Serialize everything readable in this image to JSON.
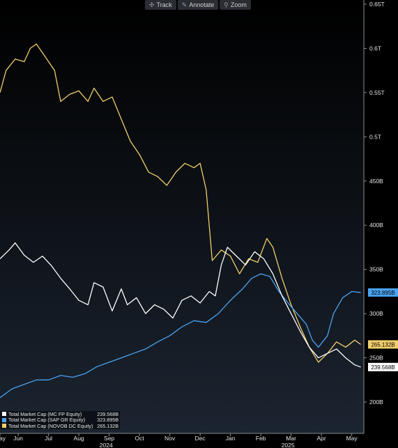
{
  "toolbar": {
    "track_label": "Track",
    "annotate_label": "Annotate",
    "zoom_label": "Zoom",
    "track_icon": "crosshair-icon",
    "annotate_icon": "pencil-icon",
    "zoom_icon": "magnifier-icon"
  },
  "legend": [
    {
      "label": "Total Market Cap (MC FP Equity)",
      "value": "239.568B",
      "color": "#ffffff"
    },
    {
      "label": "Total Market Cap (SAP GR Equity)",
      "value": "323.895B",
      "color": "#4aa3f0"
    },
    {
      "label": "Total Market Cap (NOVOB DC Equity)",
      "value": "265.132B",
      "color": "#f2cf6a"
    }
  ],
  "chart_data": {
    "type": "line",
    "y_unit": "USD market cap (billions)",
    "ylim": [
      170,
      650
    ],
    "y_ticks": [
      {
        "value": 650,
        "label": "0.65T"
      },
      {
        "value": 600,
        "label": "0.6T"
      },
      {
        "value": 550,
        "label": "0.55T"
      },
      {
        "value": 500,
        "label": "0.5T"
      },
      {
        "value": 450,
        "label": "450B"
      },
      {
        "value": 400,
        "label": "400B"
      },
      {
        "value": 350,
        "label": "350B"
      },
      {
        "value": 300,
        "label": "300B"
      },
      {
        "value": 250,
        "label": "250B"
      },
      {
        "value": 200,
        "label": "200B"
      }
    ],
    "x_ticks": [
      {
        "t": 0.0,
        "label": "May"
      },
      {
        "t": 0.6,
        "label": "Jun"
      },
      {
        "t": 1.6,
        "label": "Jul"
      },
      {
        "t": 2.6,
        "label": "Aug"
      },
      {
        "t": 3.6,
        "label": "Sep"
      },
      {
        "t": 4.6,
        "label": "Oct"
      },
      {
        "t": 5.6,
        "label": "Nov"
      },
      {
        "t": 6.6,
        "label": "Dec"
      },
      {
        "t": 7.6,
        "label": "Jan"
      },
      {
        "t": 8.6,
        "label": "Feb"
      },
      {
        "t": 9.6,
        "label": "Mar"
      },
      {
        "t": 10.6,
        "label": "Apr"
      },
      {
        "t": 11.6,
        "label": "May"
      }
    ],
    "year_labels": [
      {
        "t": 3.5,
        "label": "2024"
      },
      {
        "t": 9.5,
        "label": "2025"
      }
    ],
    "grid": false,
    "series": [
      {
        "name": "Total Market Cap (MC FP Equity)",
        "color": "#ffffff",
        "last_value": 239.568,
        "last_label": "239.568B",
        "points": [
          [
            0.0,
            362
          ],
          [
            0.3,
            372
          ],
          [
            0.5,
            380
          ],
          [
            0.8,
            366
          ],
          [
            1.1,
            358
          ],
          [
            1.4,
            365
          ],
          [
            1.7,
            354
          ],
          [
            2.0,
            340
          ],
          [
            2.3,
            328
          ],
          [
            2.6,
            315
          ],
          [
            2.9,
            310
          ],
          [
            3.1,
            335
          ],
          [
            3.4,
            330
          ],
          [
            3.7,
            303
          ],
          [
            4.0,
            328
          ],
          [
            4.2,
            310
          ],
          [
            4.5,
            318
          ],
          [
            4.8,
            300
          ],
          [
            5.1,
            310
          ],
          [
            5.4,
            305
          ],
          [
            5.7,
            295
          ],
          [
            6.0,
            315
          ],
          [
            6.3,
            320
          ],
          [
            6.6,
            312
          ],
          [
            6.9,
            325
          ],
          [
            7.1,
            320
          ],
          [
            7.3,
            355
          ],
          [
            7.5,
            375
          ],
          [
            7.8,
            365
          ],
          [
            8.1,
            355
          ],
          [
            8.4,
            370
          ],
          [
            8.7,
            362
          ],
          [
            9.0,
            345
          ],
          [
            9.3,
            320
          ],
          [
            9.6,
            300
          ],
          [
            9.9,
            280
          ],
          [
            10.2,
            262
          ],
          [
            10.5,
            250
          ],
          [
            10.8,
            255
          ],
          [
            11.1,
            260
          ],
          [
            11.4,
            250
          ],
          [
            11.7,
            242
          ],
          [
            11.9,
            239.568
          ]
        ]
      },
      {
        "name": "Total Market Cap (SAP GR Equity)",
        "color": "#4aa3f0",
        "last_value": 323.895,
        "last_label": "323.895B",
        "points": [
          [
            0.0,
            205
          ],
          [
            0.4,
            215
          ],
          [
            0.8,
            220
          ],
          [
            1.2,
            225
          ],
          [
            1.6,
            225
          ],
          [
            2.0,
            230
          ],
          [
            2.4,
            228
          ],
          [
            2.8,
            232
          ],
          [
            3.2,
            240
          ],
          [
            3.6,
            245
          ],
          [
            4.0,
            250
          ],
          [
            4.4,
            255
          ],
          [
            4.8,
            260
          ],
          [
            5.2,
            268
          ],
          [
            5.6,
            275
          ],
          [
            6.0,
            285
          ],
          [
            6.4,
            292
          ],
          [
            6.8,
            290
          ],
          [
            7.2,
            300
          ],
          [
            7.6,
            315
          ],
          [
            8.0,
            328
          ],
          [
            8.3,
            340
          ],
          [
            8.6,
            345
          ],
          [
            8.9,
            342
          ],
          [
            9.2,
            325
          ],
          [
            9.5,
            312
          ],
          [
            9.8,
            300
          ],
          [
            10.1,
            288
          ],
          [
            10.3,
            270
          ],
          [
            10.5,
            262
          ],
          [
            10.8,
            275
          ],
          [
            11.0,
            300
          ],
          [
            11.3,
            318
          ],
          [
            11.6,
            325
          ],
          [
            11.9,
            323.895
          ]
        ]
      },
      {
        "name": "Total Market Cap (NOVOB DC Equity)",
        "color": "#f2cf6a",
        "last_value": 265.132,
        "last_label": "265.132B",
        "points": [
          [
            0.0,
            550
          ],
          [
            0.2,
            575
          ],
          [
            0.5,
            588
          ],
          [
            0.8,
            585
          ],
          [
            1.0,
            600
          ],
          [
            1.2,
            605
          ],
          [
            1.5,
            590
          ],
          [
            1.8,
            575
          ],
          [
            2.0,
            540
          ],
          [
            2.3,
            548
          ],
          [
            2.6,
            552
          ],
          [
            2.9,
            540
          ],
          [
            3.1,
            555
          ],
          [
            3.4,
            540
          ],
          [
            3.7,
            545
          ],
          [
            4.0,
            520
          ],
          [
            4.3,
            495
          ],
          [
            4.6,
            480
          ],
          [
            4.9,
            460
          ],
          [
            5.2,
            455
          ],
          [
            5.5,
            445
          ],
          [
            5.8,
            460
          ],
          [
            6.1,
            470
          ],
          [
            6.4,
            465
          ],
          [
            6.6,
            470
          ],
          [
            6.8,
            440
          ],
          [
            7.0,
            360
          ],
          [
            7.3,
            372
          ],
          [
            7.6,
            365
          ],
          [
            7.9,
            345
          ],
          [
            8.2,
            362
          ],
          [
            8.5,
            358
          ],
          [
            8.8,
            385
          ],
          [
            9.0,
            375
          ],
          [
            9.3,
            340
          ],
          [
            9.6,
            310
          ],
          [
            9.9,
            285
          ],
          [
            10.2,
            262
          ],
          [
            10.5,
            245
          ],
          [
            10.8,
            255
          ],
          [
            11.1,
            268
          ],
          [
            11.4,
            262
          ],
          [
            11.7,
            270
          ],
          [
            11.9,
            265.132
          ]
        ]
      }
    ]
  }
}
